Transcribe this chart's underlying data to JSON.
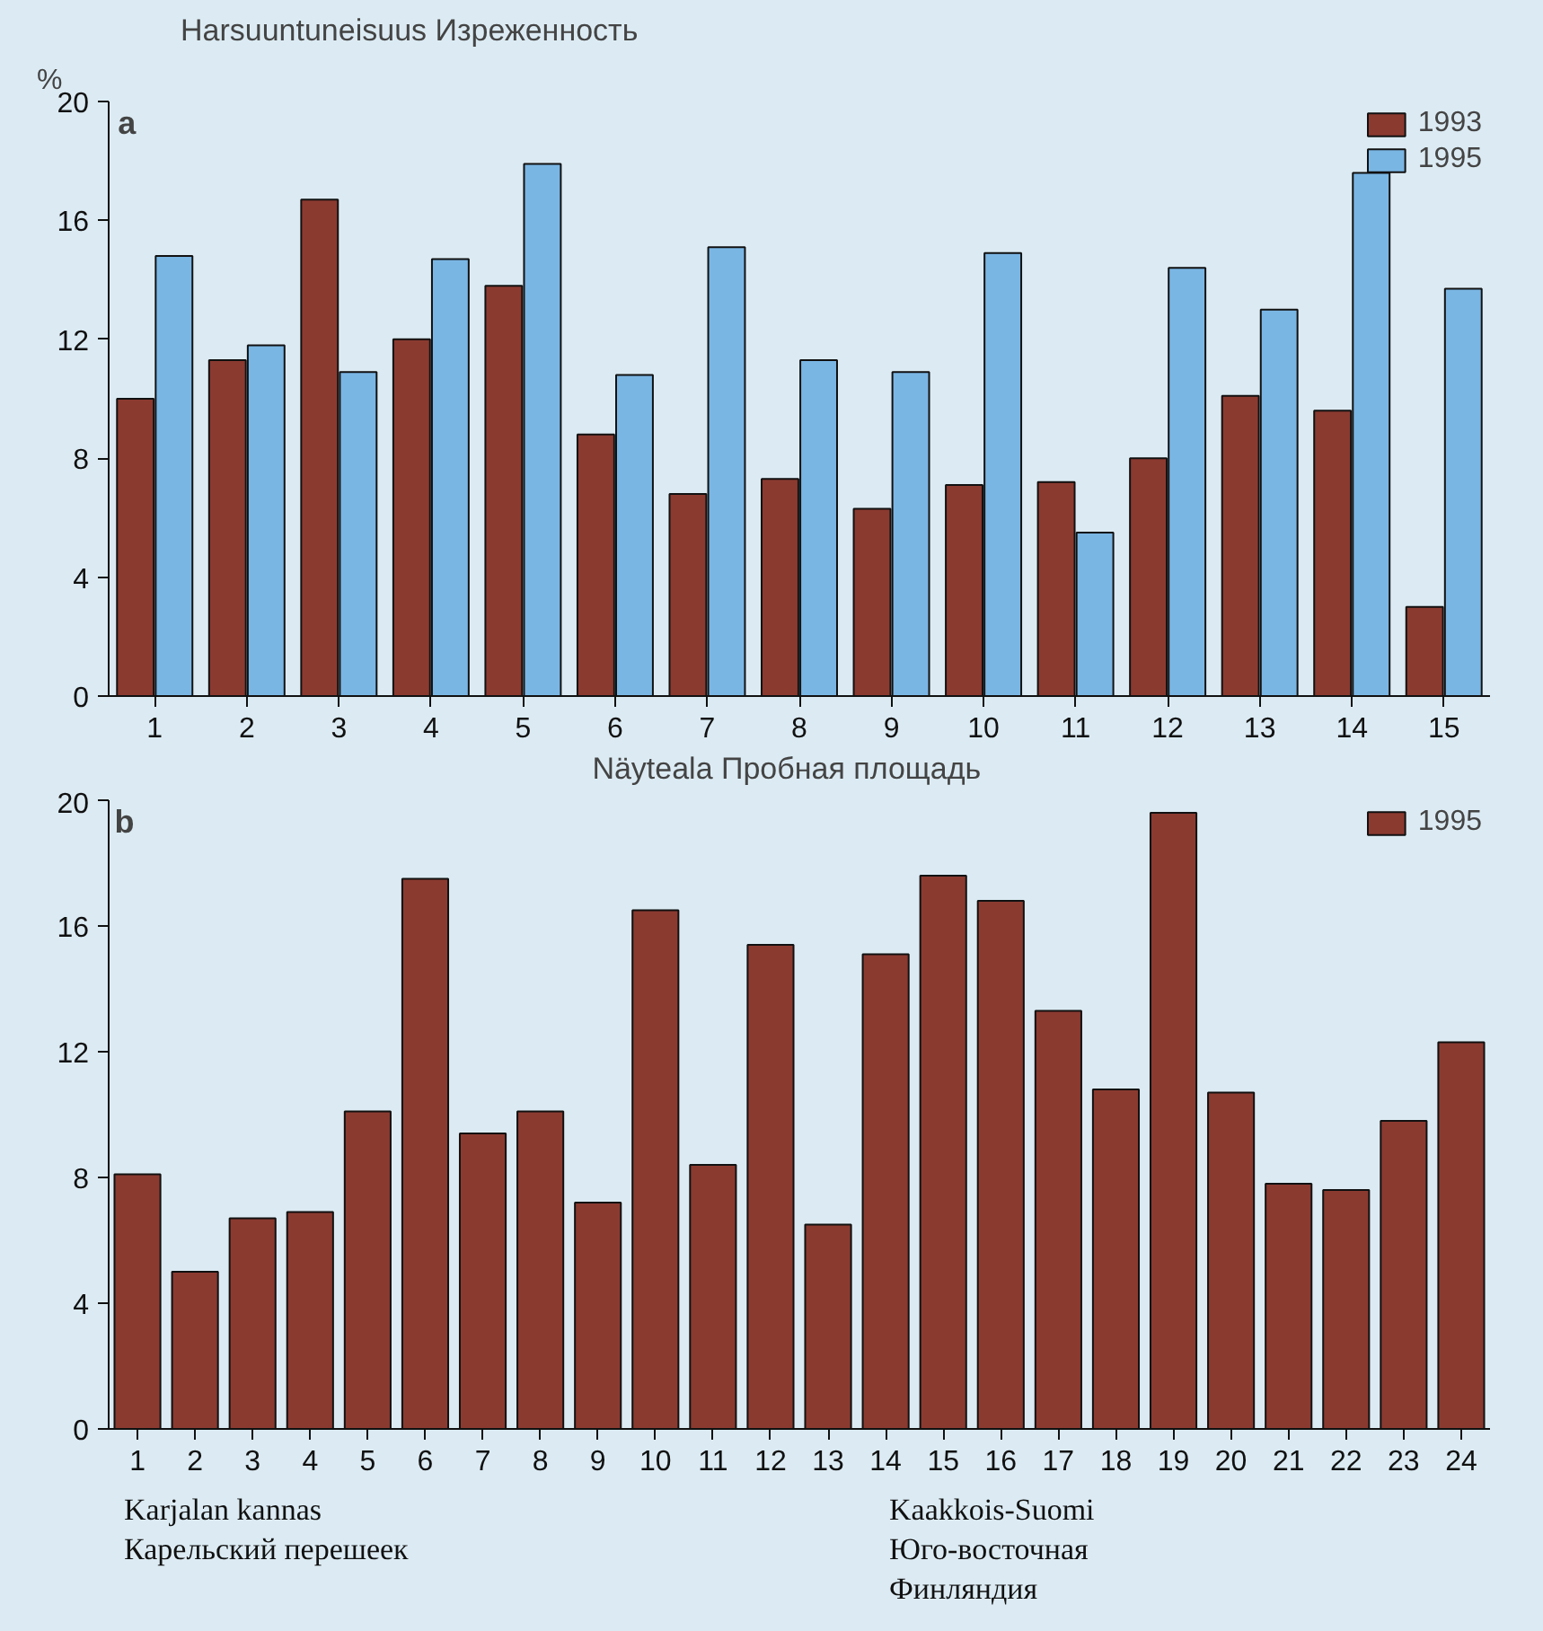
{
  "chart_data": [
    {
      "type": "bar",
      "title": "Harsuuntuneisuus    Изреженность",
      "ylabel": "%",
      "xlabel": "Näyteala    Пробная площадь",
      "categories": [
        "1",
        "2",
        "3",
        "4",
        "5",
        "6",
        "7",
        "8",
        "9",
        "10",
        "11",
        "12",
        "13",
        "14",
        "15"
      ],
      "series": [
        {
          "name": "1993",
          "color": "#8b3a30",
          "values": [
            10.0,
            11.3,
            16.7,
            12.0,
            13.8,
            8.8,
            6.8,
            7.3,
            6.3,
            7.1,
            7.2,
            8.0,
            10.1,
            9.6,
            3.0
          ]
        },
        {
          "name": "1995",
          "color": "#7ab6e4",
          "values": [
            14.8,
            11.8,
            10.9,
            14.7,
            17.9,
            10.8,
            15.1,
            11.3,
            10.9,
            14.9,
            5.5,
            14.4,
            13.0,
            17.6,
            13.7
          ]
        }
      ],
      "ylim": [
        0,
        20
      ],
      "yticks": [
        0,
        4,
        8,
        12,
        16,
        20
      ],
      "grid": false,
      "legend": "top right",
      "annotations": [
        "a"
      ]
    },
    {
      "type": "bar",
      "categories": [
        "1",
        "2",
        "3",
        "4",
        "5",
        "6",
        "7",
        "8",
        "9",
        "10",
        "11",
        "12",
        "13",
        "14",
        "15",
        "16",
        "17",
        "18",
        "19",
        "20",
        "21",
        "22",
        "23",
        "24"
      ],
      "series": [
        {
          "name": "1995",
          "color": "#8b3a30",
          "values": [
            8.1,
            5.0,
            6.7,
            6.9,
            10.1,
            17.5,
            9.4,
            10.1,
            7.2,
            16.5,
            8.4,
            15.4,
            6.5,
            15.1,
            17.6,
            16.8,
            13.3,
            10.8,
            19.6,
            10.7,
            7.8,
            7.6,
            9.8,
            12.3
          ]
        }
      ],
      "ylim": [
        0,
        20
      ],
      "yticks": [
        0,
        4,
        8,
        12,
        16,
        20
      ],
      "grid": false,
      "legend": "top right",
      "annotations": [
        "b",
        "Karjalan kannas\nКарельский перешеек",
        "Kaakkois-Suomi\nЮго-восточная\nФинляндия"
      ]
    }
  ]
}
